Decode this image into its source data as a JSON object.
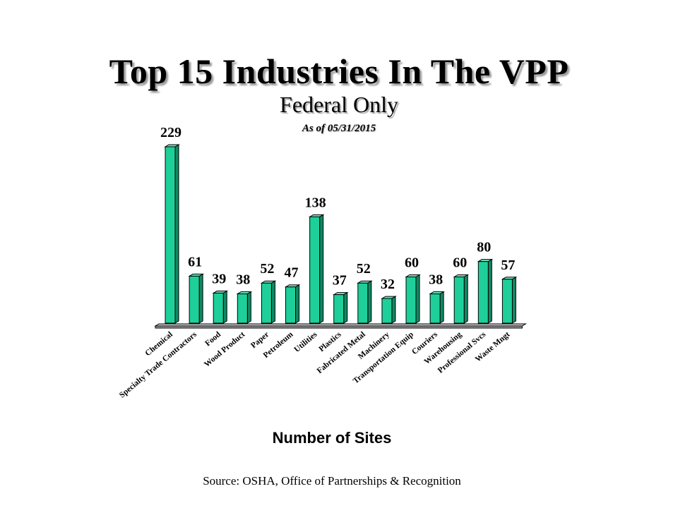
{
  "header": {
    "title": "Top 15 Industries In The VPP",
    "subtitle": "Federal Only",
    "as_of": "As of 05/31/2015"
  },
  "footer": {
    "source": "Source: OSHA, Office of Partnerships & Recognition"
  },
  "colors": {
    "bar_front": "#1fcf9a",
    "bar_side": "#0f8a64",
    "bar_top": "#6ee8c3",
    "outline": "#000000",
    "floor": "#c8c8c8"
  },
  "chart_data": {
    "type": "bar",
    "title": "Top 15 Industries In The VPP",
    "subtitle": "Federal Only",
    "xlabel": "Number of Sites",
    "ylabel": "",
    "categories": [
      "Chemical",
      "Specialty Trade Contractors",
      "Food",
      "Wood Product",
      "Paper",
      "Petroleum",
      "Utilities",
      "Plastics",
      "Fabricated Metal",
      "Machinery",
      "Transportation Equip",
      "Couriers",
      "Warehousing",
      "Professional Svcs",
      "Waste Mngt"
    ],
    "values": [
      229,
      61,
      39,
      38,
      52,
      47,
      138,
      37,
      52,
      32,
      60,
      38,
      60,
      80,
      57
    ],
    "ylim": [
      0,
      229
    ],
    "grid": false,
    "legend": "none",
    "style": "3d"
  }
}
